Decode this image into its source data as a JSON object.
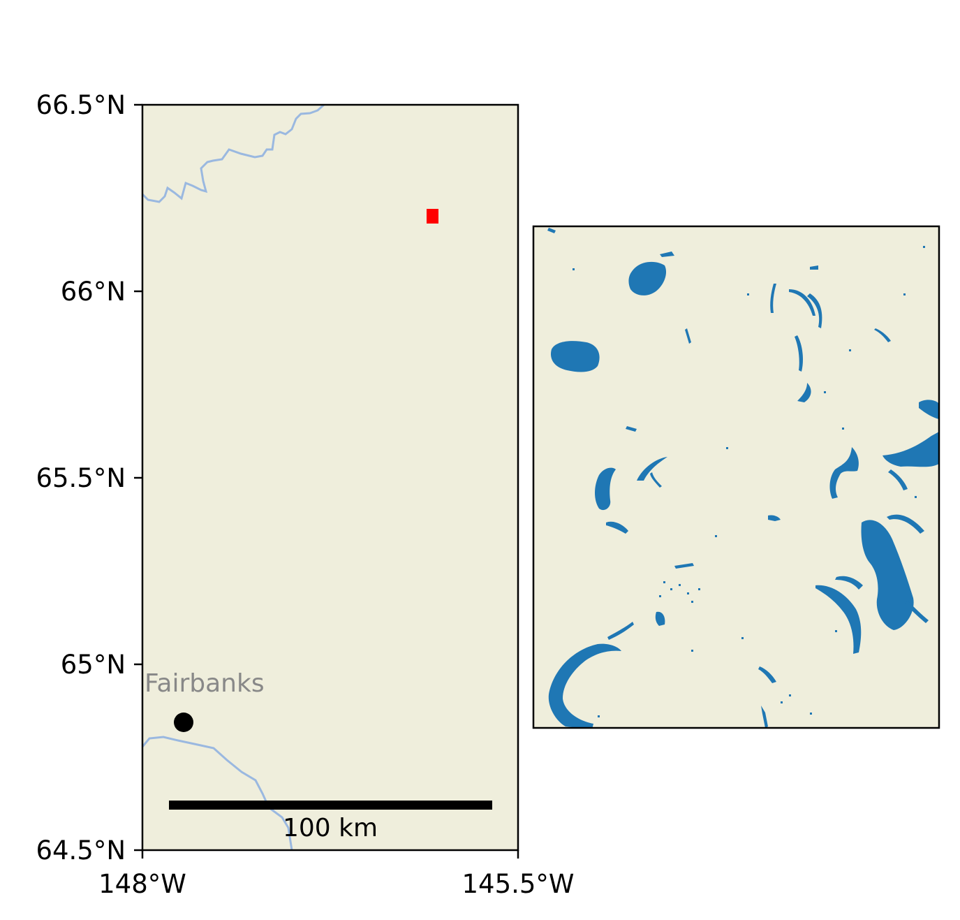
{
  "colors": {
    "land": "#efeedc",
    "river": "#9ab8e0",
    "water": "#1f77b4",
    "marker": "#ff0000",
    "city_point": "#000000",
    "city_label": "#888888",
    "frame": "#000000"
  },
  "overview_map": {
    "lat_ticks": [
      {
        "value": 66.5,
        "label": "66.5°N"
      },
      {
        "value": 66.0,
        "label": "66°N"
      },
      {
        "value": 65.5,
        "label": "65.5°N"
      },
      {
        "value": 65.0,
        "label": "65°N"
      },
      {
        "value": 64.5,
        "label": "64.5°N"
      }
    ],
    "lon_ticks": [
      {
        "value": -148.0,
        "label": "148°W"
      },
      {
        "value": -145.5,
        "label": "145.5°W"
      }
    ],
    "extent": {
      "lon": [
        -148.0,
        -145.5
      ],
      "lat": [
        64.5,
        66.5
      ]
    },
    "city": {
      "name": "Fairbanks",
      "lon": -147.72,
      "lat": 64.84
    },
    "study_area": {
      "lon": -146.07,
      "lat": 66.2
    },
    "scale_bar": {
      "label": "100 km",
      "length_km": 100
    }
  },
  "detail_map": {
    "legend": "none",
    "content": "surface water mask"
  }
}
